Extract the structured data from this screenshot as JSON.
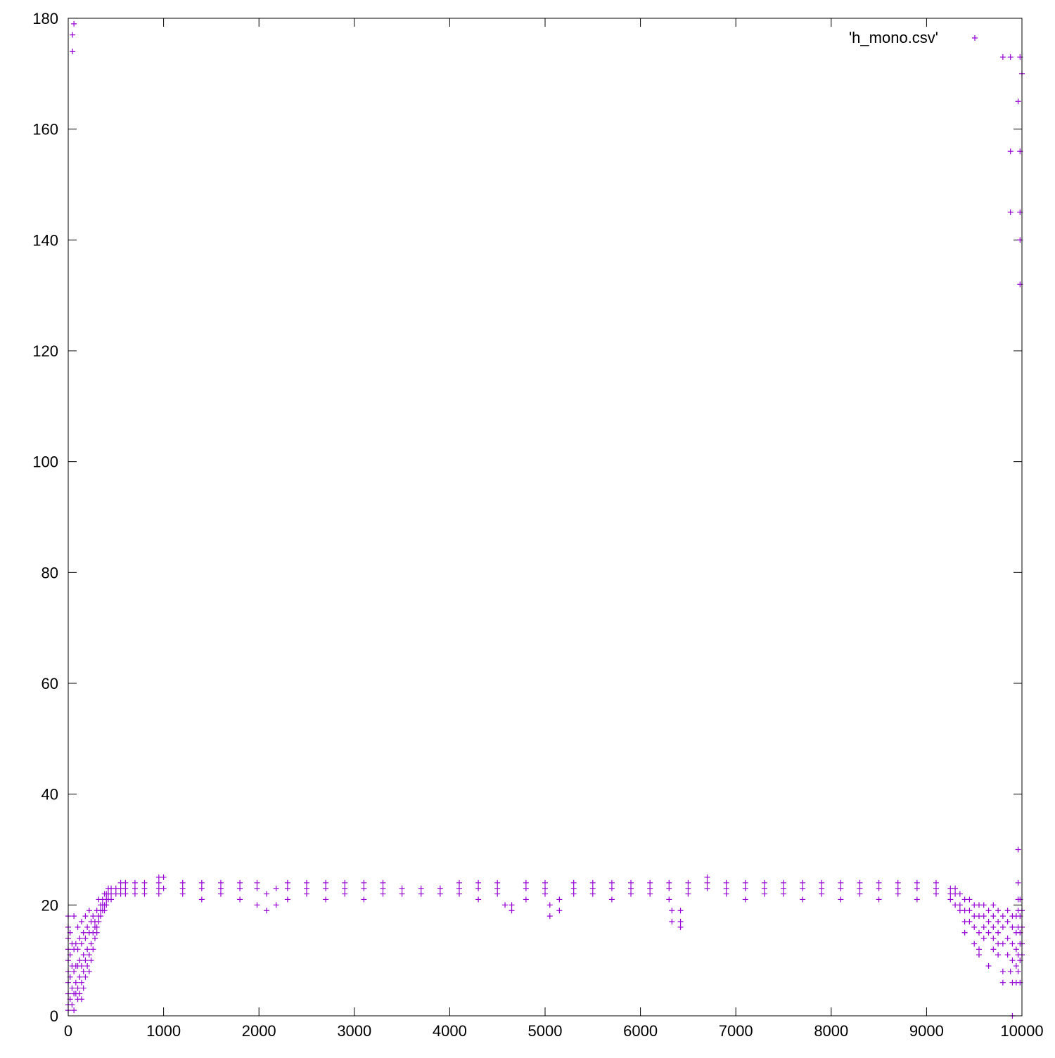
{
  "chart_data": {
    "type": "scatter",
    "title": "",
    "xlabel": "",
    "ylabel": "",
    "xlim": [
      0,
      10000
    ],
    "ylim": [
      0,
      180
    ],
    "xticks": [
      0,
      1000,
      2000,
      3000,
      4000,
      5000,
      6000,
      7000,
      8000,
      9000,
      10000
    ],
    "yticks": [
      0,
      20,
      40,
      60,
      80,
      100,
      120,
      140,
      160,
      180
    ],
    "grid": false,
    "legend_position": "top-right",
    "marker": "+",
    "series": [
      {
        "name": "'h_mono.csv'",
        "color": "#9400d3",
        "points": [
          [
            0,
            18
          ],
          [
            0,
            16
          ],
          [
            0,
            14
          ],
          [
            0,
            12
          ],
          [
            0,
            10
          ],
          [
            0,
            8
          ],
          [
            0,
            6
          ],
          [
            0,
            4
          ],
          [
            0,
            2
          ],
          [
            0,
            1
          ],
          [
            20,
            15
          ],
          [
            20,
            11
          ],
          [
            20,
            7
          ],
          [
            20,
            3
          ],
          [
            40,
            13
          ],
          [
            40,
            9
          ],
          [
            40,
            5
          ],
          [
            40,
            2
          ],
          [
            45,
            174
          ],
          [
            45,
            177
          ],
          [
            60,
            179
          ],
          [
            60,
            18
          ],
          [
            60,
            12
          ],
          [
            60,
            8
          ],
          [
            60,
            4
          ],
          [
            60,
            1
          ],
          [
            80,
            13
          ],
          [
            80,
            9
          ],
          [
            80,
            6
          ],
          [
            80,
            4
          ],
          [
            100,
            16
          ],
          [
            100,
            12
          ],
          [
            100,
            9
          ],
          [
            100,
            5
          ],
          [
            100,
            3
          ],
          [
            120,
            14
          ],
          [
            120,
            10
          ],
          [
            120,
            7
          ],
          [
            120,
            4
          ],
          [
            140,
            17
          ],
          [
            140,
            13
          ],
          [
            140,
            9
          ],
          [
            140,
            6
          ],
          [
            140,
            3
          ],
          [
            160,
            15
          ],
          [
            160,
            11
          ],
          [
            160,
            8
          ],
          [
            160,
            5
          ],
          [
            180,
            18
          ],
          [
            180,
            14
          ],
          [
            180,
            10
          ],
          [
            180,
            7
          ],
          [
            200,
            16
          ],
          [
            200,
            12
          ],
          [
            200,
            9
          ],
          [
            220,
            19
          ],
          [
            220,
            15
          ],
          [
            220,
            11
          ],
          [
            220,
            8
          ],
          [
            240,
            17
          ],
          [
            240,
            13
          ],
          [
            240,
            10
          ],
          [
            260,
            18
          ],
          [
            260,
            15
          ],
          [
            260,
            12
          ],
          [
            280,
            17
          ],
          [
            280,
            14
          ],
          [
            280,
            16
          ],
          [
            300,
            19
          ],
          [
            300,
            16
          ],
          [
            300,
            15
          ],
          [
            320,
            21
          ],
          [
            320,
            18
          ],
          [
            320,
            17
          ],
          [
            340,
            20
          ],
          [
            340,
            19
          ],
          [
            340,
            18
          ],
          [
            360,
            21
          ],
          [
            360,
            20
          ],
          [
            360,
            19
          ],
          [
            380,
            22
          ],
          [
            380,
            20
          ],
          [
            380,
            19
          ],
          [
            400,
            22
          ],
          [
            400,
            21
          ],
          [
            400,
            20
          ],
          [
            420,
            23
          ],
          [
            420,
            22
          ],
          [
            420,
            21
          ],
          [
            450,
            23
          ],
          [
            450,
            22
          ],
          [
            450,
            21
          ],
          [
            500,
            23
          ],
          [
            500,
            22
          ],
          [
            550,
            24
          ],
          [
            550,
            23
          ],
          [
            550,
            22
          ],
          [
            600,
            24
          ],
          [
            600,
            23
          ],
          [
            600,
            22
          ],
          [
            700,
            24
          ],
          [
            700,
            23
          ],
          [
            700,
            22
          ],
          [
            800,
            24
          ],
          [
            800,
            23
          ],
          [
            800,
            22
          ],
          [
            950,
            25
          ],
          [
            950,
            24
          ],
          [
            950,
            23
          ],
          [
            950,
            22
          ],
          [
            1000,
            25
          ],
          [
            1000,
            23
          ],
          [
            1200,
            24
          ],
          [
            1200,
            23
          ],
          [
            1200,
            22
          ],
          [
            1400,
            24
          ],
          [
            1400,
            23
          ],
          [
            1400,
            21
          ],
          [
            1600,
            24
          ],
          [
            1600,
            23
          ],
          [
            1600,
            22
          ],
          [
            1800,
            24
          ],
          [
            1800,
            23
          ],
          [
            1800,
            21
          ],
          [
            1980,
            24
          ],
          [
            1980,
            23
          ],
          [
            1980,
            20
          ],
          [
            2080,
            22
          ],
          [
            2080,
            19
          ],
          [
            2180,
            23
          ],
          [
            2180,
            20
          ],
          [
            2300,
            24
          ],
          [
            2300,
            23
          ],
          [
            2300,
            21
          ],
          [
            2500,
            24
          ],
          [
            2500,
            23
          ],
          [
            2500,
            22
          ],
          [
            2700,
            24
          ],
          [
            2700,
            23
          ],
          [
            2700,
            21
          ],
          [
            2900,
            24
          ],
          [
            2900,
            23
          ],
          [
            2900,
            22
          ],
          [
            3100,
            24
          ],
          [
            3100,
            23
          ],
          [
            3100,
            21
          ],
          [
            3300,
            24
          ],
          [
            3300,
            23
          ],
          [
            3300,
            22
          ],
          [
            3500,
            23
          ],
          [
            3500,
            22
          ],
          [
            3700,
            23
          ],
          [
            3700,
            22
          ],
          [
            3900,
            23
          ],
          [
            3900,
            22
          ],
          [
            4100,
            24
          ],
          [
            4100,
            23
          ],
          [
            4100,
            22
          ],
          [
            4300,
            24
          ],
          [
            4300,
            23
          ],
          [
            4300,
            21
          ],
          [
            4500,
            24
          ],
          [
            4500,
            23
          ],
          [
            4500,
            22
          ],
          [
            4580,
            20
          ],
          [
            4650,
            20
          ],
          [
            4650,
            19
          ],
          [
            4800,
            24
          ],
          [
            4800,
            23
          ],
          [
            4800,
            21
          ],
          [
            5000,
            24
          ],
          [
            5000,
            23
          ],
          [
            5000,
            22
          ],
          [
            5050,
            18
          ],
          [
            5050,
            20
          ],
          [
            5150,
            21
          ],
          [
            5150,
            19
          ],
          [
            5300,
            24
          ],
          [
            5300,
            23
          ],
          [
            5300,
            22
          ],
          [
            5500,
            24
          ],
          [
            5500,
            23
          ],
          [
            5500,
            22
          ],
          [
            5700,
            24
          ],
          [
            5700,
            23
          ],
          [
            5700,
            21
          ],
          [
            5900,
            24
          ],
          [
            5900,
            23
          ],
          [
            5900,
            22
          ],
          [
            6100,
            24
          ],
          [
            6100,
            23
          ],
          [
            6100,
            22
          ],
          [
            6300,
            24
          ],
          [
            6300,
            23
          ],
          [
            6300,
            21
          ],
          [
            6330,
            19
          ],
          [
            6330,
            17
          ],
          [
            6420,
            19
          ],
          [
            6420,
            17
          ],
          [
            6420,
            16
          ],
          [
            6500,
            24
          ],
          [
            6500,
            23
          ],
          [
            6500,
            22
          ],
          [
            6700,
            25
          ],
          [
            6700,
            24
          ],
          [
            6700,
            23
          ],
          [
            6900,
            24
          ],
          [
            6900,
            23
          ],
          [
            6900,
            22
          ],
          [
            7100,
            24
          ],
          [
            7100,
            23
          ],
          [
            7100,
            21
          ],
          [
            7300,
            24
          ],
          [
            7300,
            23
          ],
          [
            7300,
            22
          ],
          [
            7500,
            24
          ],
          [
            7500,
            23
          ],
          [
            7500,
            22
          ],
          [
            7700,
            24
          ],
          [
            7700,
            23
          ],
          [
            7700,
            21
          ],
          [
            7900,
            24
          ],
          [
            7900,
            23
          ],
          [
            7900,
            22
          ],
          [
            8100,
            24
          ],
          [
            8100,
            23
          ],
          [
            8100,
            21
          ],
          [
            8300,
            24
          ],
          [
            8300,
            23
          ],
          [
            8300,
            22
          ],
          [
            8500,
            24
          ],
          [
            8500,
            23
          ],
          [
            8500,
            21
          ],
          [
            8700,
            24
          ],
          [
            8700,
            23
          ],
          [
            8700,
            22
          ],
          [
            8900,
            24
          ],
          [
            8900,
            23
          ],
          [
            8900,
            21
          ],
          [
            9100,
            24
          ],
          [
            9100,
            23
          ],
          [
            9100,
            22
          ],
          [
            9250,
            23
          ],
          [
            9250,
            22
          ],
          [
            9250,
            21
          ],
          [
            9300,
            23
          ],
          [
            9300,
            22
          ],
          [
            9300,
            20
          ],
          [
            9350,
            22
          ],
          [
            9350,
            20
          ],
          [
            9350,
            19
          ],
          [
            9400,
            21
          ],
          [
            9400,
            19
          ],
          [
            9400,
            17
          ],
          [
            9400,
            15
          ],
          [
            9450,
            21
          ],
          [
            9450,
            19
          ],
          [
            9450,
            17
          ],
          [
            9500,
            20
          ],
          [
            9500,
            18
          ],
          [
            9500,
            16
          ],
          [
            9500,
            13
          ],
          [
            9550,
            20
          ],
          [
            9550,
            18
          ],
          [
            9550,
            15
          ],
          [
            9550,
            12
          ],
          [
            9550,
            11
          ],
          [
            9600,
            20
          ],
          [
            9600,
            18
          ],
          [
            9600,
            16
          ],
          [
            9600,
            14
          ],
          [
            9650,
            19
          ],
          [
            9650,
            17
          ],
          [
            9650,
            15
          ],
          [
            9650,
            9
          ],
          [
            9700,
            20
          ],
          [
            9700,
            18
          ],
          [
            9700,
            16
          ],
          [
            9700,
            14
          ],
          [
            9700,
            12
          ],
          [
            9750,
            19
          ],
          [
            9750,
            17
          ],
          [
            9750,
            15
          ],
          [
            9750,
            13
          ],
          [
            9750,
            11
          ],
          [
            9800,
            173
          ],
          [
            9800,
            18
          ],
          [
            9800,
            16
          ],
          [
            9800,
            13
          ],
          [
            9800,
            8
          ],
          [
            9800,
            6
          ],
          [
            9850,
            19
          ],
          [
            9850,
            17
          ],
          [
            9850,
            14
          ],
          [
            9850,
            11
          ],
          [
            9880,
            173
          ],
          [
            9880,
            156
          ],
          [
            9880,
            145
          ],
          [
            9880,
            8
          ],
          [
            9900,
            18
          ],
          [
            9900,
            16
          ],
          [
            9900,
            13
          ],
          [
            9900,
            10
          ],
          [
            9900,
            6
          ],
          [
            9900,
            0
          ],
          [
            9940,
            18
          ],
          [
            9940,
            15
          ],
          [
            9940,
            12
          ],
          [
            9940,
            9
          ],
          [
            9940,
            6
          ],
          [
            9960,
            165
          ],
          [
            9960,
            30
          ],
          [
            9960,
            24
          ],
          [
            9960,
            21
          ],
          [
            9960,
            19
          ],
          [
            9960,
            16
          ],
          [
            9960,
            11
          ],
          [
            9960,
            8
          ],
          [
            9980,
            173
          ],
          [
            9980,
            156
          ],
          [
            9980,
            145
          ],
          [
            9980,
            140
          ],
          [
            9980,
            132
          ],
          [
            9980,
            21
          ],
          [
            9980,
            18
          ],
          [
            9980,
            15
          ],
          [
            9980,
            13
          ],
          [
            9980,
            10
          ],
          [
            9980,
            6
          ],
          [
            10000,
            170
          ],
          [
            10000,
            19
          ],
          [
            10000,
            16
          ],
          [
            10000,
            13
          ],
          [
            10000,
            11
          ]
        ]
      }
    ]
  }
}
